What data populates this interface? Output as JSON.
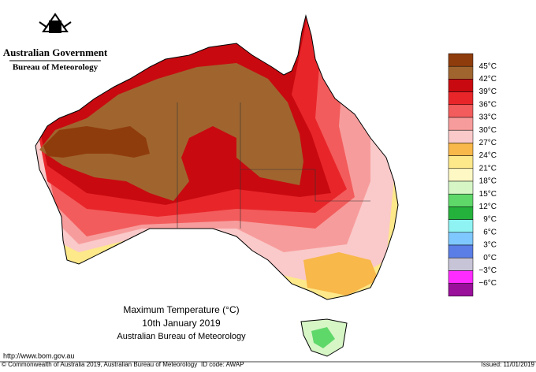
{
  "header": {
    "government": "Australian Government",
    "agency": "Bureau of Meteorology"
  },
  "title": {
    "line1": "Maximum Temperature (°C)",
    "line2": "10th January 2019",
    "line3": "Australian Bureau of Meteorology"
  },
  "footer": {
    "url": "http://www.bom.gov.au",
    "copyright": "© Commonwealth of Australia 2019, Australian Bureau of Meteorology",
    "id_code": "ID code: AWAP",
    "issued": "Issued: 11/01/2019"
  },
  "legend": {
    "labels": [
      "45°C",
      "42°C",
      "39°C",
      "36°C",
      "33°C",
      "30°C",
      "27°C",
      "24°C",
      "21°C",
      "18°C",
      "15°C",
      "12°C",
      "9°C",
      "6°C",
      "3°C",
      "0°C",
      "−3°C",
      "−6°C"
    ],
    "colors": [
      "#8f3c0c",
      "#a0652f",
      "#c80a10",
      "#e8262a",
      "#f35c5c",
      "#f79c9c",
      "#fac9c9",
      "#f8b84a",
      "#fde88a",
      "#fdf8c4",
      "#d6f6c6",
      "#5fd86a",
      "#25b23c",
      "#8ff3f3",
      "#7fc8ff",
      "#5a7ee6",
      "#c8c4d8",
      "#ff2cff",
      "#9a109a"
    ]
  }
}
